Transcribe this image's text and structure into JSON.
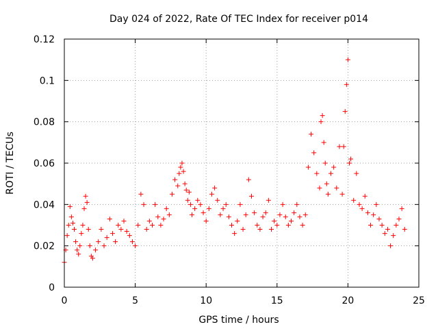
{
  "chart_data": {
    "type": "scatter",
    "title": "Day 024 of 2022, Rate Of TEC Index for receiver p014",
    "xlabel": "GPS time / hours",
    "ylabel": "ROTI / TECUs",
    "xlim": [
      0,
      25
    ],
    "ylim": [
      0,
      0.12
    ],
    "xticks": [
      0,
      5,
      10,
      15,
      20,
      25
    ],
    "xtick_labels": [
      "0",
      "5",
      "10",
      "15",
      "20",
      "25"
    ],
    "yticks": [
      0,
      0.02,
      0.04,
      0.06,
      0.08,
      0.1,
      0.12
    ],
    "ytick_labels": [
      "0",
      "0.02",
      "0.04",
      "0.06",
      "0.08",
      "0.1",
      "0.12"
    ],
    "grid": true,
    "marker": "+",
    "color": "#ff0000",
    "series": [
      {
        "name": "ROTI",
        "x": [
          0.0,
          0.1,
          0.2,
          0.3,
          0.4,
          0.5,
          0.6,
          0.7,
          0.8,
          0.9,
          1.0,
          1.1,
          1.2,
          1.3,
          1.4,
          1.5,
          1.6,
          1.7,
          1.8,
          1.9,
          2.0,
          2.2,
          2.4,
          2.6,
          2.8,
          3.0,
          3.2,
          3.4,
          3.6,
          3.8,
          4.0,
          4.2,
          4.4,
          4.6,
          4.8,
          5.0,
          5.2,
          5.4,
          5.6,
          5.8,
          6.0,
          6.2,
          6.4,
          6.6,
          6.8,
          7.0,
          7.2,
          7.4,
          7.6,
          7.8,
          8.0,
          8.1,
          8.2,
          8.3,
          8.4,
          8.5,
          8.6,
          8.7,
          8.8,
          8.9,
          9.0,
          9.2,
          9.4,
          9.6,
          9.8,
          10.0,
          10.2,
          10.4,
          10.6,
          10.8,
          11.0,
          11.2,
          11.4,
          11.6,
          11.8,
          12.0,
          12.2,
          12.4,
          12.6,
          12.8,
          13.0,
          13.2,
          13.4,
          13.6,
          13.8,
          14.0,
          14.2,
          14.4,
          14.6,
          14.8,
          15.0,
          15.2,
          15.4,
          15.6,
          15.8,
          16.0,
          16.2,
          16.4,
          16.6,
          16.8,
          17.0,
          17.2,
          17.4,
          17.6,
          17.8,
          18.0,
          18.1,
          18.2,
          18.3,
          18.4,
          18.5,
          18.6,
          18.8,
          19.0,
          19.2,
          19.4,
          19.6,
          19.7,
          19.8,
          19.9,
          20.0,
          20.1,
          20.2,
          20.4,
          20.6,
          20.8,
          21.0,
          21.2,
          21.4,
          21.6,
          21.8,
          22.0,
          22.2,
          22.4,
          22.6,
          22.8,
          23.0,
          23.2,
          23.4,
          23.6,
          23.8,
          24.0
        ],
        "y": [
          0.012,
          0.018,
          0.025,
          0.03,
          0.039,
          0.034,
          0.031,
          0.028,
          0.022,
          0.018,
          0.016,
          0.02,
          0.026,
          0.03,
          0.038,
          0.044,
          0.041,
          0.028,
          0.02,
          0.015,
          0.014,
          0.018,
          0.022,
          0.028,
          0.02,
          0.024,
          0.033,
          0.026,
          0.022,
          0.03,
          0.028,
          0.032,
          0.027,
          0.025,
          0.022,
          0.02,
          0.03,
          0.045,
          0.04,
          0.028,
          0.032,
          0.03,
          0.04,
          0.034,
          0.03,
          0.033,
          0.038,
          0.035,
          0.045,
          0.052,
          0.049,
          0.055,
          0.058,
          0.06,
          0.056,
          0.05,
          0.047,
          0.042,
          0.046,
          0.04,
          0.035,
          0.038,
          0.042,
          0.04,
          0.036,
          0.032,
          0.038,
          0.045,
          0.048,
          0.042,
          0.035,
          0.038,
          0.04,
          0.034,
          0.03,
          0.026,
          0.032,
          0.04,
          0.028,
          0.035,
          0.052,
          0.044,
          0.036,
          0.03,
          0.028,
          0.034,
          0.036,
          0.042,
          0.028,
          0.032,
          0.03,
          0.035,
          0.04,
          0.034,
          0.03,
          0.032,
          0.036,
          0.04,
          0.034,
          0.03,
          0.035,
          0.058,
          0.074,
          0.065,
          0.055,
          0.048,
          0.08,
          0.083,
          0.07,
          0.06,
          0.05,
          0.045,
          0.055,
          0.058,
          0.048,
          0.068,
          0.045,
          0.068,
          0.085,
          0.098,
          0.11,
          0.06,
          0.062,
          0.042,
          0.055,
          0.04,
          0.038,
          0.044,
          0.036,
          0.03,
          0.035,
          0.04,
          0.033,
          0.03,
          0.026,
          0.028,
          0.02,
          0.025,
          0.03,
          0.033,
          0.038,
          0.028
        ]
      }
    ]
  }
}
